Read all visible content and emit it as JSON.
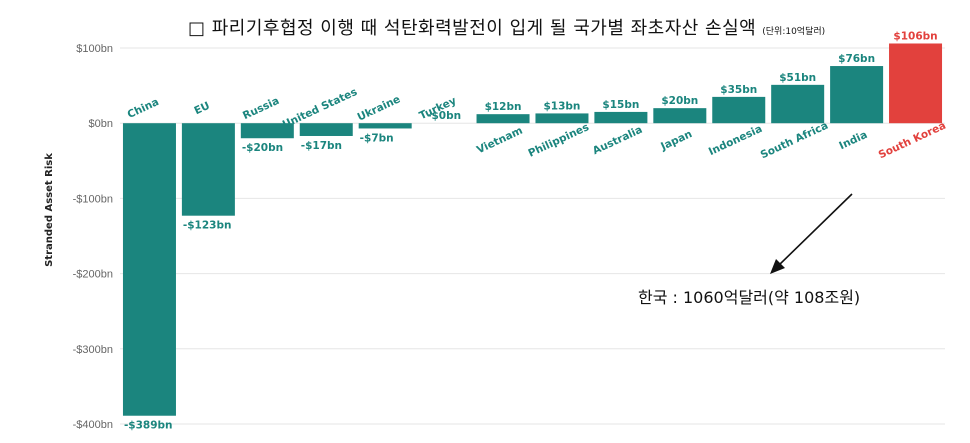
{
  "title": "□ 파리기후협정 이행 때 석탄화력발전이 입게 될 국가별 좌초자산 손실액",
  "unit_note": "(단위:10억달러)",
  "annotation": "한국 : 1060억달러(약 108조원)",
  "colors": {
    "bar": "#1b857e",
    "highlight": "#e2413d",
    "grid": "#e6e6e6"
  },
  "chart_data": {
    "type": "bar",
    "ylabel": "Stranded Asset Risk",
    "ylim": [
      -400,
      100
    ],
    "yticks": [
      100,
      0,
      -100,
      -200,
      -300,
      -400
    ],
    "ytick_labels": [
      "$100bn",
      "$0bn",
      "-$100bn",
      "-$200bn",
      "-$300bn",
      "-$400bn"
    ],
    "grid": true,
    "categories": [
      "China",
      "EU",
      "Russia",
      "United States",
      "Ukraine",
      "Turkey",
      "Vietnam",
      "Philippines",
      "Australia",
      "Japan",
      "Indonesia",
      "South Africa",
      "India",
      "South Korea"
    ],
    "values": [
      -389,
      -123,
      -20,
      -17,
      -7,
      0,
      12,
      13,
      15,
      20,
      35,
      51,
      76,
      106
    ],
    "value_labels": [
      "-$389bn",
      "-$123bn",
      "-$20bn",
      "-$17bn",
      "-$7bn",
      "-$0bn",
      "$12bn",
      "$13bn",
      "$15bn",
      "$20bn",
      "$35bn",
      "$51bn",
      "$76bn",
      "$106bn"
    ],
    "highlight": "South Korea"
  }
}
